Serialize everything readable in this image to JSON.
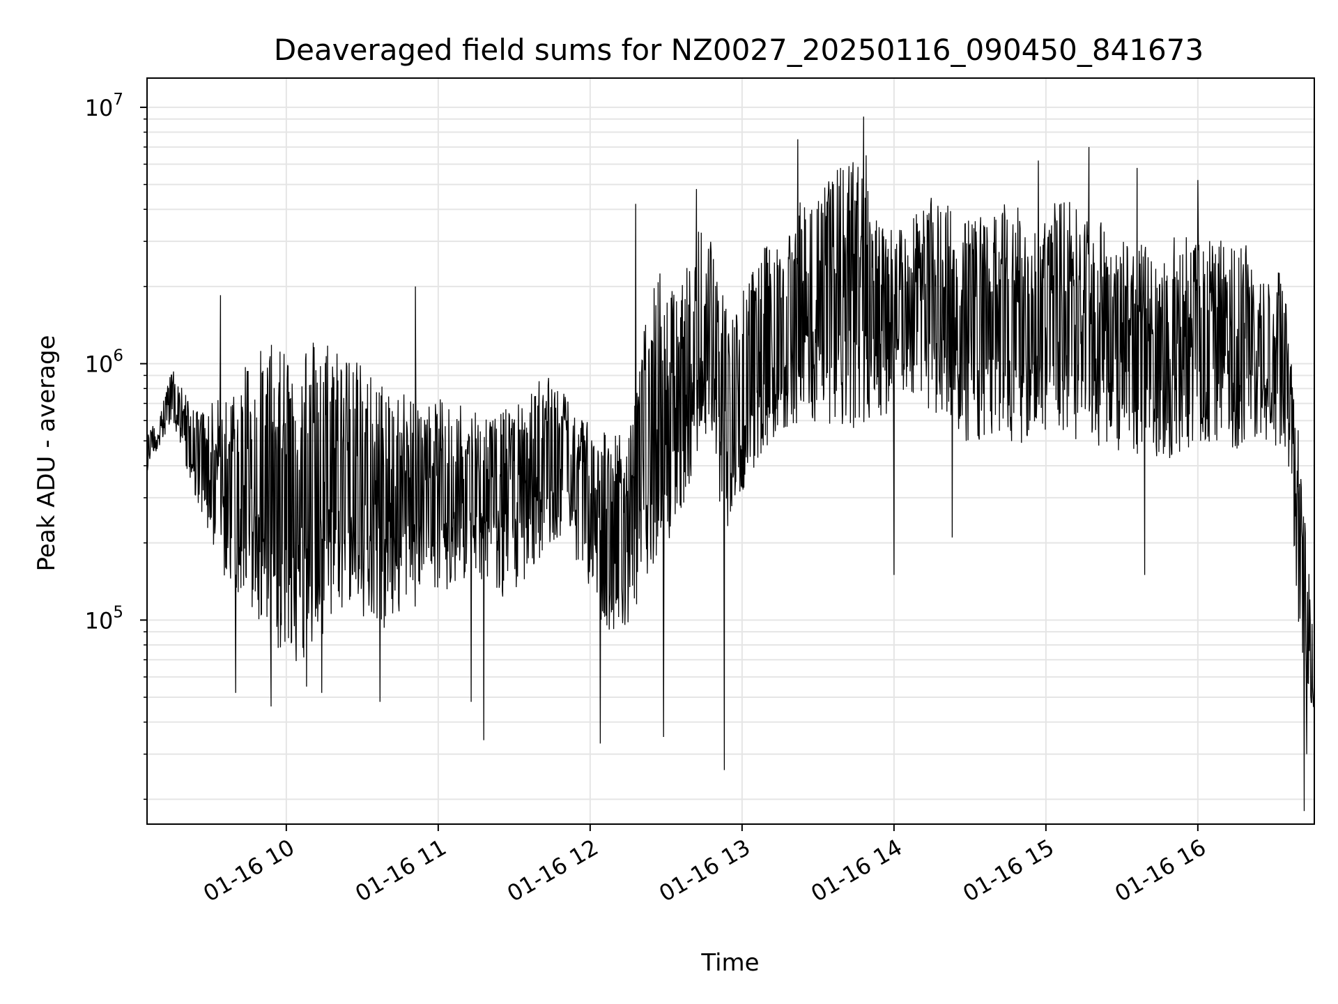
{
  "chart_data": {
    "type": "line",
    "title": "Deaveraged field sums for NZ0027_20250116_090450_841673",
    "xlabel": "Time",
    "ylabel": "Peak ADU - average",
    "yscale": "log",
    "ylim": [
      16000,
      13000000
    ],
    "xlim": [
      "2025-01-16 09:05",
      "2025-01-16 16:46"
    ],
    "x_ticks": [
      "01-16 10",
      "01-16 11",
      "01-16 12",
      "01-16 13",
      "01-16 14",
      "01-16 15",
      "01-16 16"
    ],
    "x_tick_values": [
      "2025-01-16 10:00",
      "2025-01-16 11:00",
      "2025-01-16 12:00",
      "2025-01-16 13:00",
      "2025-01-16 14:00",
      "2025-01-16 15:00",
      "2025-01-16 16:00"
    ],
    "y_ticks": [
      {
        "value": 100000,
        "base": "10",
        "exp": "5"
      },
      {
        "value": 1000000,
        "base": "10",
        "exp": "6"
      },
      {
        "value": 10000000,
        "base": "10",
        "exp": "7"
      }
    ],
    "grid": true,
    "line_color": "#000000",
    "grid_color": "#e5e5e5",
    "series": [
      {
        "x": [
          "2025-01-16 09:05",
          "2025-01-16 09:15",
          "2025-01-16 09:25",
          "2025-01-16 09:35",
          "2025-01-16 09:45",
          "2025-01-16 09:55",
          "2025-01-16 10:05",
          "2025-01-16 10:15",
          "2025-01-16 10:25",
          "2025-01-16 10:35",
          "2025-01-16 10:45",
          "2025-01-16 10:55",
          "2025-01-16 11:05",
          "2025-01-16 11:15",
          "2025-01-16 11:25",
          "2025-01-16 11:35",
          "2025-01-16 11:45",
          "2025-01-16 11:55",
          "2025-01-16 12:05",
          "2025-01-16 12:15",
          "2025-01-16 12:25",
          "2025-01-16 12:35",
          "2025-01-16 12:45",
          "2025-01-16 12:55",
          "2025-01-16 13:05",
          "2025-01-16 13:15",
          "2025-01-16 13:25",
          "2025-01-16 13:35",
          "2025-01-16 13:45",
          "2025-01-16 13:55",
          "2025-01-16 14:05",
          "2025-01-16 14:15",
          "2025-01-16 14:25",
          "2025-01-16 14:35",
          "2025-01-16 14:45",
          "2025-01-16 14:55",
          "2025-01-16 15:05",
          "2025-01-16 15:15",
          "2025-01-16 15:25",
          "2025-01-16 15:35",
          "2025-01-16 15:45",
          "2025-01-16 15:55",
          "2025-01-16 16:05",
          "2025-01-16 16:15",
          "2025-01-16 16:25",
          "2025-01-16 16:35",
          "2025-01-16 16:40",
          "2025-01-16 16:45"
        ],
        "lower": [
          380000,
          600000,
          280000,
          150000,
          110000,
          80000,
          65000,
          90000,
          110000,
          85000,
          100000,
          120000,
          130000,
          150000,
          120000,
          140000,
          200000,
          170000,
          90000,
          95000,
          150000,
          250000,
          500000,
          200000,
          400000,
          550000,
          600000,
          550000,
          500000,
          600000,
          800000,
          650000,
          500000,
          480000,
          450000,
          520000,
          520000,
          500000,
          450000,
          420000,
          420000,
          430000,
          500000,
          450000,
          520000,
          450000,
          90000,
          45000
        ],
        "upper": [
          520000,
          950000,
          650000,
          750000,
          1100000,
          1200000,
          1300000,
          1350000,
          1100000,
          900000,
          800000,
          700000,
          750000,
          700000,
          650000,
          750000,
          1000000,
          650000,
          600000,
          500000,
          2500000,
          1800000,
          4500000,
          1500000,
          2500000,
          3500000,
          4500000,
          5500000,
          6500000,
          3500000,
          3500000,
          4500000,
          4000000,
          3800000,
          4500000,
          3500000,
          4500000,
          4000000,
          3500000,
          3000000,
          2800000,
          3500000,
          3000000,
          3200000,
          2500000,
          2200000,
          500000,
          110000
        ],
        "spikes_high": [
          [
            "2025-01-16 09:34",
            1850000
          ],
          [
            "2025-01-16 10:51",
            2000000
          ],
          [
            "2025-01-16 12:18",
            4200000
          ],
          [
            "2025-01-16 12:42",
            4800000
          ],
          [
            "2025-01-16 13:22",
            7500000
          ],
          [
            "2025-01-16 13:48",
            9200000
          ],
          [
            "2025-01-16 13:49",
            6500000
          ],
          [
            "2025-01-16 14:57",
            6200000
          ],
          [
            "2025-01-16 15:17",
            7000000
          ],
          [
            "2025-01-16 15:36",
            5800000
          ],
          [
            "2025-01-16 16:00",
            5200000
          ]
        ],
        "spikes_low": [
          [
            "2025-01-16 09:40",
            52000
          ],
          [
            "2025-01-16 09:54",
            46000
          ],
          [
            "2025-01-16 10:08",
            55000
          ],
          [
            "2025-01-16 10:14",
            52000
          ],
          [
            "2025-01-16 10:37",
            48000
          ],
          [
            "2025-01-16 11:13",
            48000
          ],
          [
            "2025-01-16 11:18",
            34000
          ],
          [
            "2025-01-16 12:04",
            33000
          ],
          [
            "2025-01-16 12:29",
            35000
          ],
          [
            "2025-01-16 12:53",
            26000
          ],
          [
            "2025-01-16 14:00",
            150000
          ],
          [
            "2025-01-16 14:23",
            210000
          ],
          [
            "2025-01-16 15:39",
            150000
          ],
          [
            "2025-01-16 16:42",
            18000
          ],
          [
            "2025-01-16 16:43",
            30000
          ]
        ]
      }
    ]
  }
}
